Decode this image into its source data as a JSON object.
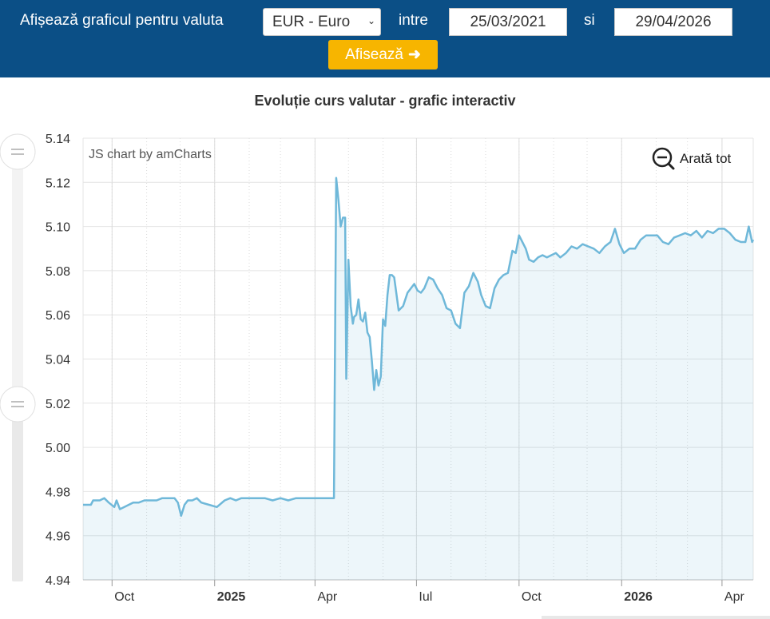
{
  "form": {
    "label": "Afișează graficul pentru valuta",
    "currency": "EUR - Euro",
    "between": "intre",
    "date_from": "25/03/2021",
    "and": "si",
    "date_to": "29/04/2026",
    "submit": "Afisează"
  },
  "chart_credit": "JS chart by amCharts",
  "zoom_out_label": "Arată tot",
  "chart_data": {
    "type": "area",
    "title": "Evoluție curs valutar - grafic interactiv",
    "xlabel": "",
    "ylabel": "",
    "ylim": [
      4.94,
      5.14
    ],
    "y_ticks": [
      "5.14",
      "5.12",
      "5.10",
      "5.08",
      "5.06",
      "5.04",
      "5.02",
      "5.00",
      "4.98",
      "4.96",
      "4.94"
    ],
    "x_ticks": [
      {
        "label": "Oct",
        "bold": false,
        "date": "2024-10-01"
      },
      {
        "label": "2025",
        "bold": true,
        "date": "2025-01-01"
      },
      {
        "label": "Apr",
        "bold": false,
        "date": "2025-04-01"
      },
      {
        "label": "Iul",
        "bold": false,
        "date": "2025-07-01"
      },
      {
        "label": "Oct",
        "bold": false,
        "date": "2025-10-01"
      },
      {
        "label": "2026",
        "bold": true,
        "date": "2026-01-01"
      },
      {
        "label": "Apr",
        "bold": false,
        "date": "2026-04-01"
      }
    ],
    "grid": true,
    "series": [
      {
        "color": "#6fb8d9",
        "x": [
          "2024-09-05",
          "2024-09-12",
          "2024-09-14",
          "2024-09-20",
          "2024-09-24",
          "2024-09-28",
          "2024-10-03",
          "2024-10-05",
          "2024-10-08",
          "2024-10-12",
          "2024-10-16",
          "2024-10-20",
          "2024-10-25",
          "2024-10-30",
          "2024-11-05",
          "2024-11-10",
          "2024-11-15",
          "2024-11-20",
          "2024-11-26",
          "2024-11-29",
          "2024-12-02",
          "2024-12-05",
          "2024-12-08",
          "2024-12-12",
          "2024-12-16",
          "2024-12-20",
          "2024-12-27",
          "2025-01-03",
          "2025-01-10",
          "2025-01-15",
          "2025-01-20",
          "2025-01-25",
          "2025-02-01",
          "2025-02-08",
          "2025-02-15",
          "2025-02-22",
          "2025-03-01",
          "2025-03-08",
          "2025-03-15",
          "2025-03-22",
          "2025-03-29",
          "2025-04-05",
          "2025-04-12",
          "2025-04-18",
          "2025-04-20",
          "2025-04-22",
          "2025-04-24",
          "2025-04-26",
          "2025-04-28",
          "2025-04-29",
          "2025-05-01",
          "2025-05-03",
          "2025-05-05",
          "2025-05-06",
          "2025-05-08",
          "2025-05-10",
          "2025-05-12",
          "2025-05-14",
          "2025-05-16",
          "2025-05-18",
          "2025-05-20",
          "2025-05-22",
          "2025-05-24",
          "2025-05-26",
          "2025-05-28",
          "2025-05-30",
          "2025-06-01",
          "2025-06-03",
          "2025-06-05",
          "2025-06-07",
          "2025-06-09",
          "2025-06-11",
          "2025-06-15",
          "2025-06-19",
          "2025-06-23",
          "2025-06-26",
          "2025-06-29",
          "2025-07-02",
          "2025-07-05",
          "2025-07-08",
          "2025-07-12",
          "2025-07-16",
          "2025-07-20",
          "2025-07-24",
          "2025-07-28",
          "2025-08-01",
          "2025-08-05",
          "2025-08-09",
          "2025-08-13",
          "2025-08-17",
          "2025-08-21",
          "2025-08-25",
          "2025-08-28",
          "2025-09-01",
          "2025-09-05",
          "2025-09-09",
          "2025-09-13",
          "2025-09-17",
          "2025-09-21",
          "2025-09-25",
          "2025-09-28",
          "2025-10-01",
          "2025-10-04",
          "2025-10-07",
          "2025-10-10",
          "2025-10-14",
          "2025-10-18",
          "2025-10-22",
          "2025-10-26",
          "2025-10-30",
          "2025-11-03",
          "2025-11-07",
          "2025-11-12",
          "2025-11-17",
          "2025-11-22",
          "2025-11-27",
          "2025-12-02",
          "2025-12-07",
          "2025-12-12",
          "2025-12-17",
          "2025-12-22",
          "2025-12-26",
          "2025-12-30",
          "2026-01-03",
          "2026-01-08",
          "2026-01-13",
          "2026-01-18",
          "2026-01-23",
          "2026-01-28",
          "2026-02-02",
          "2026-02-07",
          "2026-02-12",
          "2026-02-17",
          "2026-02-22",
          "2026-02-27",
          "2026-03-04",
          "2026-03-09",
          "2026-03-14",
          "2026-03-19",
          "2026-03-24",
          "2026-03-29",
          "2026-04-03",
          "2026-04-08",
          "2026-04-13",
          "2026-04-18",
          "2026-04-22",
          "2026-04-25",
          "2026-04-28",
          "2026-04-29"
        ],
        "y": [
          4.974,
          4.974,
          4.976,
          4.976,
          4.977,
          4.975,
          4.973,
          4.976,
          4.972,
          4.973,
          4.974,
          4.975,
          4.975,
          4.976,
          4.976,
          4.976,
          4.977,
          4.977,
          4.977,
          4.975,
          4.969,
          4.974,
          4.976,
          4.976,
          4.977,
          4.975,
          4.974,
          4.973,
          4.976,
          4.977,
          4.976,
          4.977,
          4.977,
          4.977,
          4.977,
          4.976,
          4.977,
          4.976,
          4.977,
          4.977,
          4.977,
          4.977,
          4.977,
          4.977,
          5.122,
          5.112,
          5.1,
          5.104,
          5.104,
          5.031,
          5.085,
          5.064,
          5.056,
          5.059,
          5.06,
          5.067,
          5.058,
          5.057,
          5.061,
          5.052,
          5.05,
          5.039,
          5.026,
          5.035,
          5.028,
          5.032,
          5.058,
          5.055,
          5.069,
          5.078,
          5.078,
          5.077,
          5.062,
          5.064,
          5.07,
          5.072,
          5.074,
          5.071,
          5.07,
          5.072,
          5.077,
          5.076,
          5.072,
          5.069,
          5.063,
          5.062,
          5.056,
          5.054,
          5.07,
          5.073,
          5.079,
          5.075,
          5.069,
          5.064,
          5.063,
          5.072,
          5.076,
          5.078,
          5.079,
          5.089,
          5.088,
          5.096,
          5.093,
          5.09,
          5.085,
          5.084,
          5.086,
          5.087,
          5.086,
          5.087,
          5.088,
          5.086,
          5.088,
          5.091,
          5.09,
          5.092,
          5.091,
          5.09,
          5.088,
          5.091,
          5.093,
          5.099,
          5.092,
          5.088,
          5.09,
          5.09,
          5.094,
          5.096,
          5.096,
          5.096,
          5.093,
          5.092,
          5.095,
          5.096,
          5.097,
          5.096,
          5.098,
          5.095,
          5.098,
          5.097,
          5.099,
          5.099,
          5.097,
          5.094,
          5.093,
          5.093,
          5.1,
          5.093,
          5.094
        ]
      }
    ]
  }
}
